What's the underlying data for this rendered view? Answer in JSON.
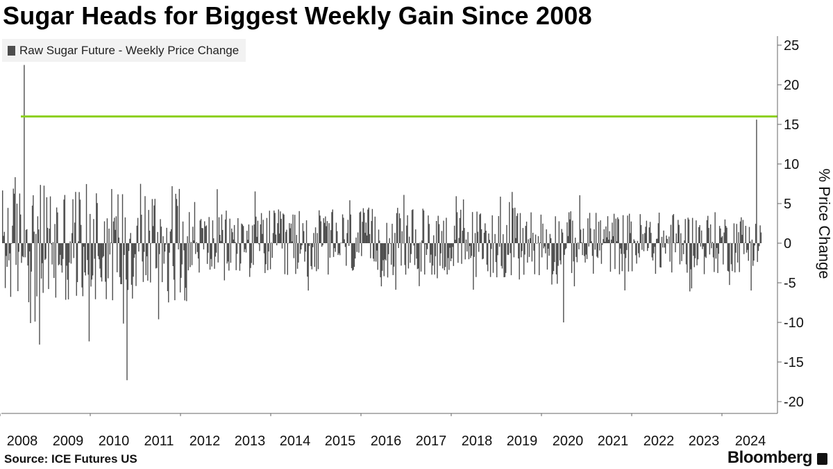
{
  "title": "Sugar Heads for Biggest Weekly Gain Since 2008",
  "source": "Source: ICE Futures US",
  "brand": "Bloomberg",
  "colors": {
    "bars": "#4d4d4d",
    "reference_line": "#8ccf1f",
    "legend_bg": "#f2f2f2",
    "axis": "#666666"
  },
  "chart_data": {
    "type": "bar",
    "series": [
      {
        "name": "Raw Sugar Future - Weekly Price Change",
        "description_of_shape": "weekly bars, roughly Jan 2008 to Mar 2024",
        "x_start": "2008-01",
        "x_end": "2024-03",
        "extreme_points": [
          {
            "x": "2008-02",
            "value": 22.5
          },
          {
            "x": "2010-05",
            "value": -17.3
          },
          {
            "x": "2024-03",
            "value": 15.6
          },
          {
            "x": "2019-12",
            "value": -10.0
          },
          {
            "x": "2009-07",
            "value": -12.4
          },
          {
            "x": "2008-06",
            "value": -12.8
          }
        ]
      }
    ],
    "reference_line": {
      "value": 16.0
    },
    "ylabel": "% Price Change",
    "ylim": [
      -21,
      26
    ],
    "yticks": [
      25,
      20,
      15,
      10,
      5,
      0,
      -5,
      -10,
      -15,
      -20
    ],
    "xticks": [
      "2008",
      "2009",
      "2010",
      "2011",
      "2012",
      "2013",
      "2014",
      "2015",
      "2016",
      "2017",
      "2018",
      "2019",
      "2020",
      "2021",
      "2022",
      "2023",
      "2024"
    ],
    "legend_position": "top-left",
    "y_axis_side": "right",
    "grid": false
  }
}
